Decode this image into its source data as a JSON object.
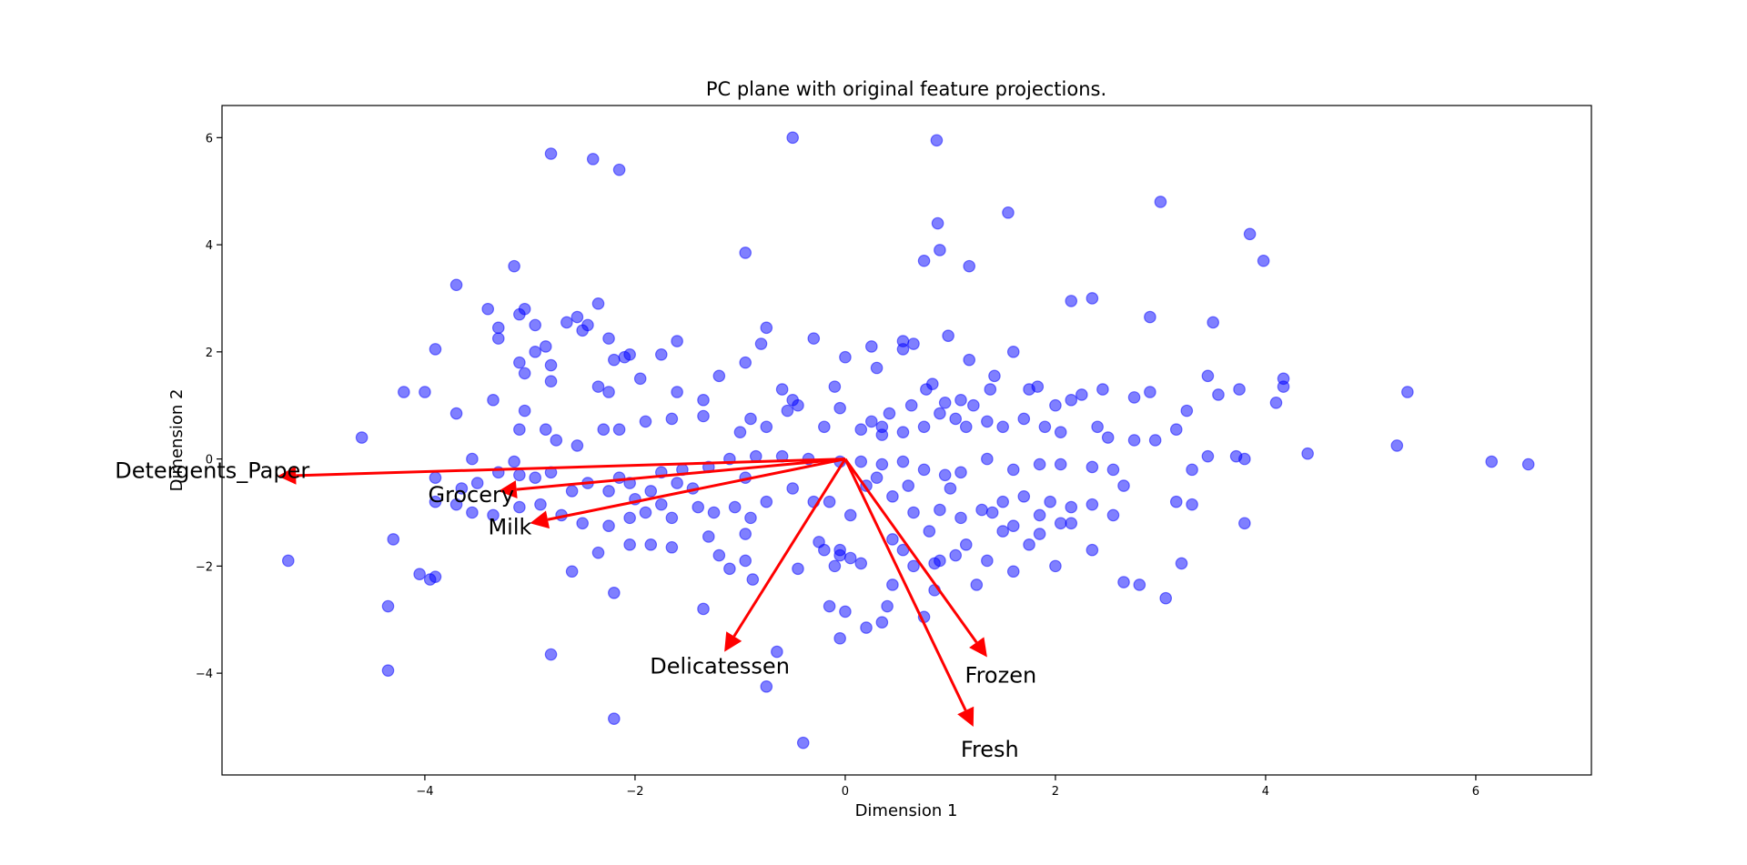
{
  "chart_data": {
    "type": "scatter",
    "title": "PC plane with original feature projections.",
    "xlabel": "Dimension 1",
    "ylabel": "Dimension 2",
    "xlim": [
      -5.93,
      7.1
    ],
    "ylim": [
      -5.9,
      6.6
    ],
    "xticks": [
      -4,
      -2,
      0,
      2,
      4,
      6
    ],
    "yticks": [
      -4,
      -2,
      0,
      2,
      4,
      6
    ],
    "xtick_labels": [
      "−4",
      "−2",
      "0",
      "2",
      "4",
      "6"
    ],
    "ytick_labels": [
      "−4",
      "−2",
      "0",
      "2",
      "4",
      "6"
    ],
    "grid": false,
    "colors": {
      "points": "#0000ff",
      "points_opacity": 0.5,
      "arrows": "#ff0000"
    },
    "points": [
      [
        -0.5,
        6.0
      ],
      [
        -2.8,
        5.7
      ],
      [
        -2.4,
        5.6
      ],
      [
        -2.15,
        5.4
      ],
      [
        0.87,
        5.95
      ],
      [
        3.0,
        4.8
      ],
      [
        1.55,
        4.6
      ],
      [
        0.88,
        4.4
      ],
      [
        3.85,
        4.2
      ],
      [
        3.98,
        3.7
      ],
      [
        0.9,
        3.9
      ],
      [
        -0.95,
        3.85
      ],
      [
        0.75,
        3.7
      ],
      [
        1.18,
        3.6
      ],
      [
        -3.15,
        3.6
      ],
      [
        -3.7,
        3.25
      ],
      [
        2.15,
        2.95
      ],
      [
        2.35,
        3.0
      ],
      [
        -3.4,
        2.8
      ],
      [
        -3.05,
        2.8
      ],
      [
        -3.1,
        2.7
      ],
      [
        -2.35,
        2.9
      ],
      [
        -2.55,
        2.65
      ],
      [
        -2.65,
        2.55
      ],
      [
        -2.45,
        2.5
      ],
      [
        -2.95,
        2.5
      ],
      [
        -3.3,
        2.45
      ],
      [
        -0.75,
        2.45
      ],
      [
        2.9,
        2.65
      ],
      [
        3.5,
        2.55
      ],
      [
        -3.9,
        2.05
      ],
      [
        -3.3,
        2.25
      ],
      [
        -2.85,
        2.1
      ],
      [
        -2.25,
        2.25
      ],
      [
        -2.5,
        2.4
      ],
      [
        -1.6,
        2.2
      ],
      [
        -0.3,
        2.25
      ],
      [
        0.0,
        1.9
      ],
      [
        0.25,
        2.1
      ],
      [
        0.55,
        2.2
      ],
      [
        0.65,
        2.15
      ],
      [
        0.55,
        2.05
      ],
      [
        0.98,
        2.3
      ],
      [
        1.6,
        2.0
      ],
      [
        -1.75,
        1.95
      ],
      [
        -2.1,
        1.9
      ],
      [
        -2.2,
        1.85
      ],
      [
        -2.95,
        2.0
      ],
      [
        -2.8,
        1.75
      ],
      [
        -2.05,
        1.95
      ],
      [
        -3.1,
        1.8
      ],
      [
        -0.8,
        2.15
      ],
      [
        0.3,
        1.7
      ],
      [
        1.18,
        1.85
      ],
      [
        -4.2,
        1.25
      ],
      [
        -4.0,
        1.25
      ],
      [
        -3.35,
        1.1
      ],
      [
        -3.05,
        1.6
      ],
      [
        -2.8,
        1.45
      ],
      [
        -2.35,
        1.35
      ],
      [
        -2.25,
        1.25
      ],
      [
        -1.95,
        1.5
      ],
      [
        -1.6,
        1.25
      ],
      [
        -1.35,
        1.1
      ],
      [
        -1.2,
        1.55
      ],
      [
        -0.95,
        1.8
      ],
      [
        -0.6,
        1.3
      ],
      [
        -0.5,
        1.1
      ],
      [
        -0.45,
        1.0
      ],
      [
        -0.1,
        1.35
      ],
      [
        -0.05,
        0.95
      ],
      [
        0.35,
        0.6
      ],
      [
        0.42,
        0.85
      ],
      [
        0.63,
        1.0
      ],
      [
        0.77,
        1.3
      ],
      [
        0.83,
        1.4
      ],
      [
        0.95,
        1.05
      ],
      [
        1.1,
        1.1
      ],
      [
        1.22,
        1.0
      ],
      [
        1.38,
        1.3
      ],
      [
        1.42,
        1.55
      ],
      [
        1.75,
        1.3
      ],
      [
        1.83,
        1.35
      ],
      [
        2.0,
        1.0
      ],
      [
        2.15,
        1.1
      ],
      [
        2.25,
        1.2
      ],
      [
        2.45,
        1.3
      ],
      [
        2.75,
        1.15
      ],
      [
        2.9,
        1.25
      ],
      [
        3.25,
        0.9
      ],
      [
        3.45,
        1.55
      ],
      [
        3.55,
        1.2
      ],
      [
        3.75,
        1.3
      ],
      [
        4.1,
        1.05
      ],
      [
        4.17,
        1.5
      ],
      [
        4.17,
        1.35
      ],
      [
        5.35,
        1.25
      ],
      [
        -4.6,
        0.4
      ],
      [
        -3.7,
        0.85
      ],
      [
        -3.05,
        0.9
      ],
      [
        -3.1,
        0.55
      ],
      [
        -2.85,
        0.55
      ],
      [
        -2.75,
        0.35
      ],
      [
        -2.55,
        0.25
      ],
      [
        -2.3,
        0.55
      ],
      [
        -2.15,
        0.55
      ],
      [
        -1.9,
        0.7
      ],
      [
        -1.65,
        0.75
      ],
      [
        -1.35,
        0.8
      ],
      [
        -1.0,
        0.5
      ],
      [
        -0.9,
        0.75
      ],
      [
        -0.75,
        0.6
      ],
      [
        -0.55,
        0.9
      ],
      [
        -0.2,
        0.6
      ],
      [
        0.15,
        0.55
      ],
      [
        0.25,
        0.7
      ],
      [
        0.35,
        0.45
      ],
      [
        0.55,
        0.5
      ],
      [
        0.75,
        0.6
      ],
      [
        0.9,
        0.85
      ],
      [
        1.05,
        0.75
      ],
      [
        1.15,
        0.6
      ],
      [
        1.35,
        0.7
      ],
      [
        1.5,
        0.6
      ],
      [
        1.7,
        0.75
      ],
      [
        1.9,
        0.6
      ],
      [
        2.05,
        0.5
      ],
      [
        2.4,
        0.6
      ],
      [
        2.5,
        0.4
      ],
      [
        2.75,
        0.35
      ],
      [
        2.95,
        0.35
      ],
      [
        3.15,
        0.55
      ],
      [
        3.8,
        0.0
      ],
      [
        5.25,
        0.25
      ],
      [
        6.15,
        -0.05
      ],
      [
        6.5,
        -0.1
      ],
      [
        4.4,
        0.1
      ],
      [
        3.72,
        0.05
      ],
      [
        3.45,
        0.05
      ],
      [
        3.3,
        -0.2
      ],
      [
        2.65,
        -0.5
      ],
      [
        2.55,
        -0.2
      ],
      [
        2.35,
        -0.15
      ],
      [
        2.05,
        -0.1
      ],
      [
        1.85,
        -0.1
      ],
      [
        1.6,
        -0.2
      ],
      [
        1.35,
        0.0
      ],
      [
        1.1,
        -0.25
      ],
      [
        0.95,
        -0.3
      ],
      [
        0.75,
        -0.2
      ],
      [
        0.55,
        -0.05
      ],
      [
        0.35,
        -0.1
      ],
      [
        0.15,
        -0.05
      ],
      [
        -0.05,
        -0.05
      ],
      [
        -0.35,
        0.0
      ],
      [
        -0.6,
        0.05
      ],
      [
        -0.85,
        0.05
      ],
      [
        -1.1,
        0.0
      ],
      [
        -1.3,
        -0.15
      ],
      [
        -1.55,
        -0.2
      ],
      [
        -1.75,
        -0.25
      ],
      [
        -1.85,
        -0.6
      ],
      [
        -2.05,
        -0.45
      ],
      [
        -2.25,
        -0.6
      ],
      [
        -2.45,
        -0.45
      ],
      [
        -2.6,
        -0.6
      ],
      [
        -2.8,
        -0.25
      ],
      [
        -2.95,
        -0.35
      ],
      [
        -3.1,
        -0.3
      ],
      [
        -3.3,
        -0.25
      ],
      [
        -3.5,
        -0.45
      ],
      [
        -3.65,
        -0.55
      ],
      [
        -3.9,
        -0.35
      ],
      [
        -3.55,
        0.0
      ],
      [
        -3.15,
        -0.05
      ],
      [
        -3.9,
        -0.8
      ],
      [
        -3.7,
        -0.85
      ],
      [
        -3.55,
        -1.0
      ],
      [
        -3.35,
        -1.05
      ],
      [
        -3.1,
        -0.9
      ],
      [
        -2.9,
        -0.85
      ],
      [
        -2.7,
        -1.05
      ],
      [
        -2.5,
        -1.2
      ],
      [
        -2.25,
        -1.25
      ],
      [
        -2.05,
        -1.1
      ],
      [
        -1.9,
        -1.0
      ],
      [
        -1.65,
        -1.1
      ],
      [
        -1.4,
        -0.9
      ],
      [
        -1.25,
        -1.0
      ],
      [
        -1.05,
        -0.9
      ],
      [
        -0.9,
        -1.1
      ],
      [
        -0.75,
        -0.8
      ],
      [
        -0.5,
        -0.55
      ],
      [
        -0.3,
        -0.8
      ],
      [
        -0.15,
        -0.8
      ],
      [
        0.05,
        -1.05
      ],
      [
        0.2,
        -0.5
      ],
      [
        0.45,
        -0.7
      ],
      [
        0.65,
        -1.0
      ],
      [
        0.9,
        -0.95
      ],
      [
        1.1,
        -1.1
      ],
      [
        1.3,
        -0.95
      ],
      [
        1.5,
        -0.8
      ],
      [
        1.7,
        -0.7
      ],
      [
        1.95,
        -0.8
      ],
      [
        2.15,
        -0.9
      ],
      [
        2.35,
        -0.85
      ],
      [
        2.55,
        -1.05
      ],
      [
        3.15,
        -0.8
      ],
      [
        3.3,
        -0.85
      ],
      [
        3.8,
        -1.2
      ],
      [
        -4.3,
        -1.5
      ],
      [
        -4.05,
        -2.15
      ],
      [
        -3.95,
        -2.25
      ],
      [
        -3.9,
        -2.2
      ],
      [
        -5.3,
        -1.9
      ],
      [
        -4.35,
        -2.75
      ],
      [
        -4.35,
        -3.95
      ],
      [
        -2.8,
        -3.65
      ],
      [
        -2.6,
        -2.1
      ],
      [
        -2.35,
        -1.75
      ],
      [
        -2.05,
        -1.6
      ],
      [
        -1.85,
        -1.6
      ],
      [
        -1.65,
        -1.65
      ],
      [
        -1.35,
        -2.8
      ],
      [
        -1.2,
        -1.8
      ],
      [
        -1.1,
        -2.05
      ],
      [
        -0.95,
        -1.9
      ],
      [
        -0.88,
        -2.25
      ],
      [
        -0.75,
        -4.25
      ],
      [
        -0.65,
        -3.6
      ],
      [
        -0.45,
        -2.05
      ],
      [
        -0.25,
        -1.55
      ],
      [
        -0.2,
        -1.7
      ],
      [
        -0.1,
        -2.0
      ],
      [
        -0.05,
        -1.8
      ],
      [
        0.05,
        -1.85
      ],
      [
        -0.05,
        -1.7
      ],
      [
        0.0,
        -2.85
      ],
      [
        -0.15,
        -2.75
      ],
      [
        -0.05,
        -3.35
      ],
      [
        0.15,
        -1.95
      ],
      [
        0.2,
        -3.15
      ],
      [
        0.35,
        -3.05
      ],
      [
        0.4,
        -2.75
      ],
      [
        0.45,
        -2.35
      ],
      [
        0.55,
        -1.7
      ],
      [
        0.65,
        -2.0
      ],
      [
        0.75,
        -2.95
      ],
      [
        0.85,
        -1.95
      ],
      [
        0.9,
        -1.9
      ],
      [
        1.05,
        -1.8
      ],
      [
        1.15,
        -1.6
      ],
      [
        1.35,
        -1.9
      ],
      [
        1.25,
        -2.35
      ],
      [
        1.6,
        -2.1
      ],
      [
        1.75,
        -1.6
      ],
      [
        1.85,
        -1.4
      ],
      [
        2.0,
        -2.0
      ],
      [
        2.15,
        -1.2
      ],
      [
        2.35,
        -1.7
      ],
      [
        2.65,
        -2.3
      ],
      [
        2.8,
        -2.35
      ],
      [
        3.05,
        -2.6
      ],
      [
        3.2,
        -1.95
      ],
      [
        -2.2,
        -2.5
      ],
      [
        -2.2,
        -4.85
      ],
      [
        -0.4,
        -5.3
      ],
      [
        0.45,
        -1.5
      ],
      [
        0.85,
        -2.45
      ],
      [
        0.8,
        -1.35
      ],
      [
        1.5,
        -1.35
      ],
      [
        1.85,
        -1.05
      ],
      [
        2.05,
        -1.2
      ],
      [
        1.6,
        -1.25
      ],
      [
        1.4,
        -1.0
      ],
      [
        1.0,
        -0.55
      ],
      [
        0.6,
        -0.5
      ],
      [
        0.3,
        -0.35
      ],
      [
        -0.95,
        -0.35
      ],
      [
        -1.6,
        -0.45
      ],
      [
        -2.0,
        -0.75
      ],
      [
        -1.45,
        -0.55
      ],
      [
        -0.95,
        -1.4
      ],
      [
        -1.3,
        -1.45
      ],
      [
        -1.75,
        -0.85
      ],
      [
        -2.15,
        -0.35
      ]
    ],
    "arrows": [
      {
        "label": "Detergents_Paper",
        "dx": -5.4,
        "dy": -0.32
      },
      {
        "label": "Grocery",
        "dx": -3.3,
        "dy": -0.6
      },
      {
        "label": "Milk",
        "dx": -3.0,
        "dy": -1.2
      },
      {
        "label": "Delicatessen",
        "dx": -1.15,
        "dy": -3.6
      },
      {
        "label": "Frozen",
        "dx": 1.35,
        "dy": -3.7
      },
      {
        "label": "Fresh",
        "dx": 1.22,
        "dy": -5.0
      }
    ]
  }
}
